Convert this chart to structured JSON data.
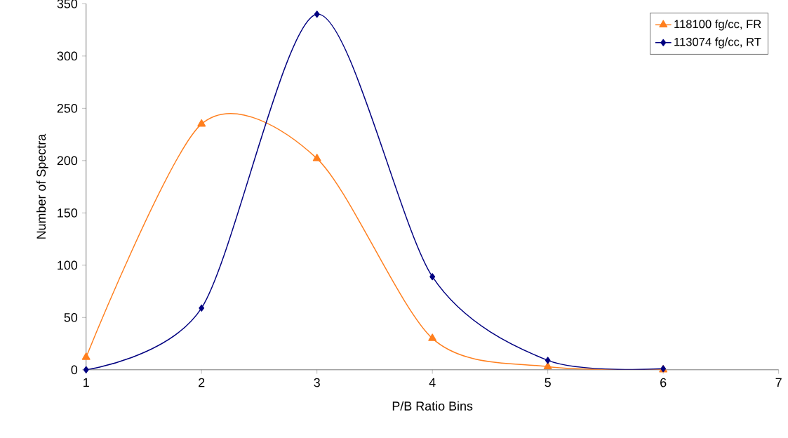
{
  "chart_data": {
    "type": "line",
    "xlabel": "P/B Ratio Bins",
    "ylabel": "Number of Spectra",
    "x": [
      1,
      2,
      3,
      4,
      5,
      6
    ],
    "series": [
      {
        "name": "118100 fg/cc, FR",
        "color": "#ff7f1e",
        "marker": "triangle",
        "values": [
          12,
          235,
          202,
          30,
          3,
          0
        ]
      },
      {
        "name": "113074 fg/cc, RT",
        "color": "#000080",
        "marker": "diamond",
        "values": [
          0,
          59,
          340,
          89,
          9,
          1
        ]
      }
    ],
    "xlim": [
      1,
      7
    ],
    "xticks": [
      1,
      2,
      3,
      4,
      5,
      6,
      7
    ],
    "ylim": [
      0,
      350
    ],
    "yticks": [
      0,
      50,
      100,
      150,
      200,
      250,
      300,
      350
    ],
    "grid": false,
    "legend": "top right",
    "line_style": "solid"
  }
}
